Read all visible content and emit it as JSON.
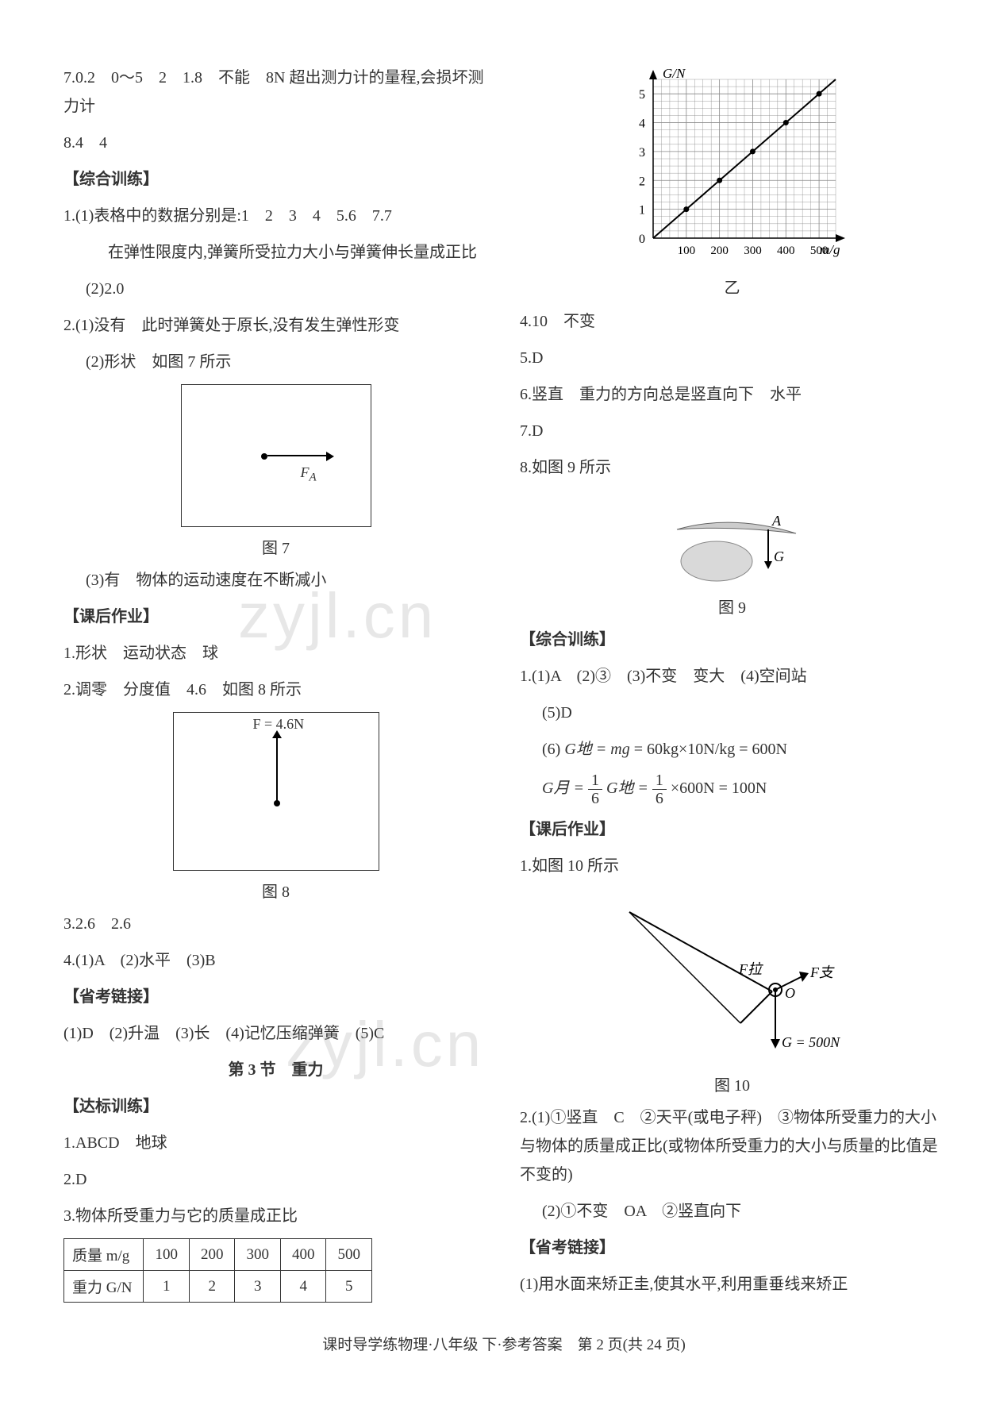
{
  "left": {
    "l1": "7.0.2　0～5　2　1.8　不能　8N 超出测力计的量程,会损坏测力计",
    "l2": "8.4　4",
    "h1": "【综合训练】",
    "q1a": "1.(1)表格中的数据分别是:1　2　3　4　5.6　7.7",
    "q1b": "在弹性限度内,弹簧所受拉力大小与弹簧伸长量成正比",
    "q1c": "(2)2.0",
    "q2a": "2.(1)没有　此时弹簧处于原长,没有发生弹性形变",
    "q2b": "(2)形状　如图 7 所示",
    "fig7_F": "F",
    "fig7_Fsub": "A",
    "fig7_caption": "图 7",
    "q2c": "(3)有　物体的运动速度在不断减小",
    "h2": "【课后作业】",
    "hw1": "1.形状　运动状态　球",
    "hw2": "2.调零　分度值　4.6　如图 8 所示",
    "fig8_label": "F = 4.6N",
    "fig8_caption": "图 8",
    "hw3": "3.2.6　2.6",
    "hw4": "4.(1)A　(2)水平　(3)B",
    "h3": "【省考链接】",
    "sk": "(1)D　(2)升温　(3)长　(4)记忆压缩弹簧　(5)C",
    "sec3": "第 3 节　重力",
    "h4": "【达标训练】",
    "db1": "1.ABCD　地球",
    "db2": "2.D",
    "db3": "3.物体所受重力与它的质量成正比",
    "table": {
      "row1_head": "质量 m/g",
      "row1": [
        "100",
        "200",
        "300",
        "400",
        "500"
      ],
      "row2_head": "重力 G/N",
      "row2": [
        "1",
        "2",
        "3",
        "4",
        "5"
      ]
    }
  },
  "right": {
    "chart": {
      "ylabel": "G/N",
      "xlabel": "m/g",
      "ylim": [
        0,
        5.5
      ],
      "xlim": [
        0,
        550
      ],
      "yticks": [
        "0",
        "1",
        "2",
        "3",
        "4",
        "5"
      ],
      "xticks": [
        "100",
        "200",
        "300",
        "400",
        "500"
      ],
      "points": [
        [
          100,
          1
        ],
        [
          200,
          2
        ],
        [
          300,
          3
        ],
        [
          400,
          4
        ],
        [
          500,
          5
        ]
      ],
      "grid_color": "#888888",
      "line_color": "#000000",
      "bg": "#ffffff"
    },
    "chart_caption": "乙",
    "a4": "4.10　不变",
    "a5": "5.D",
    "a6": "6.竖直　重力的方向总是竖直向下　水平",
    "a7": "7.D",
    "a8": "8.如图 9 所示",
    "fig9": {
      "A": "A",
      "G": "G",
      "caption": "图 9"
    },
    "h1": "【综合训练】",
    "zh1": "1.(1)A　(2)③　(3)不变　变大　(4)空间站",
    "zh1b": "(5)D",
    "zh1c_prefix": "(6)",
    "eq1_lhs": "G地 = mg",
    "eq1_rhs": " = 60kg×10N/kg = 600N",
    "eq2_pre": "G月 = ",
    "eq2_frac_num": "1",
    "eq2_frac_den": "6",
    "eq2_mid": " G地 = ",
    "eq2_frac2_num": "1",
    "eq2_frac2_den": "6",
    "eq2_post": " ×600N = 100N",
    "h2": "【课后作业】",
    "hw1": "1.如图 10 所示",
    "fig10": {
      "Fla": "F拉",
      "Fzhi": "F支",
      "O": "O",
      "G": "G = 500N",
      "caption": "图 10"
    },
    "hw2a": "2.(1)①竖直　C　②天平(或电子秤)　③物体所受重力的大小与物体的质量成正比(或物体所受重力的大小与质量的比值是不变的)",
    "hw2b": "(2)①不变　OA　②竖直向下",
    "h3": "【省考链接】",
    "sk1": "(1)用水面来矫正圭,使其水平,利用重垂线来矫正"
  },
  "footer": "课时导学练物理·八年级 下·参考答案　第 2 页(共 24 页)",
  "watermark": "zyjl.cn"
}
